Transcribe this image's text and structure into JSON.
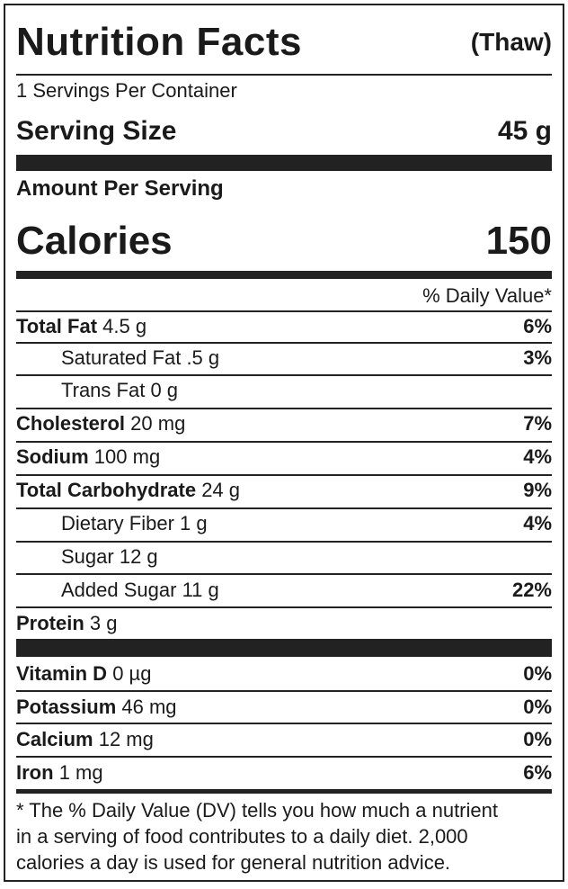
{
  "header": {
    "title": "Nutrition Facts",
    "qualifier": "(Thaw)"
  },
  "servings_per_container": "1 Servings Per Container",
  "serving_size": {
    "label": "Serving Size",
    "value": "45 g"
  },
  "amount_per_serving": "Amount Per Serving",
  "calories": {
    "label": "Calories",
    "value": "150"
  },
  "daily_value_header": "% Daily Value*",
  "nutrients": [
    {
      "name": "Total Fat",
      "amount": "4.5 g",
      "dv": "6%"
    },
    {
      "name": "Saturated Fat",
      "amount": ".5 g",
      "dv": "3%"
    },
    {
      "name": "Trans Fat",
      "amount": "0 g",
      "dv": ""
    },
    {
      "name": "Cholesterol",
      "amount": "20 mg",
      "dv": "7%"
    },
    {
      "name": "Sodium",
      "amount": "100 mg",
      "dv": "4%"
    },
    {
      "name": "Total Carbohydrate",
      "amount": "24 g",
      "dv": "9%"
    },
    {
      "name": "Dietary Fiber",
      "amount": "1 g",
      "dv": "4%"
    },
    {
      "name": "Sugar",
      "amount": "12 g",
      "dv": ""
    },
    {
      "name": "Added Sugar",
      "amount": "11 g",
      "dv": "22%"
    },
    {
      "name": "Protein",
      "amount": "3 g",
      "dv": ""
    }
  ],
  "vitamins": [
    {
      "name": "Vitamin D",
      "amount": "0 µg",
      "dv": "0%"
    },
    {
      "name": "Potassium",
      "amount": "46 mg",
      "dv": "0%"
    },
    {
      "name": "Calcium",
      "amount": "12 mg",
      "dv": "0%"
    },
    {
      "name": "Iron",
      "amount": "1 mg",
      "dv": "6%"
    }
  ],
  "footnote": {
    "line1": "* The % Daily Value (DV) tells you how much a nutrient",
    "line2": "in a serving of food contributes to a daily diet. 2,000",
    "line3": "calories a day is used for general nutrition advice."
  }
}
